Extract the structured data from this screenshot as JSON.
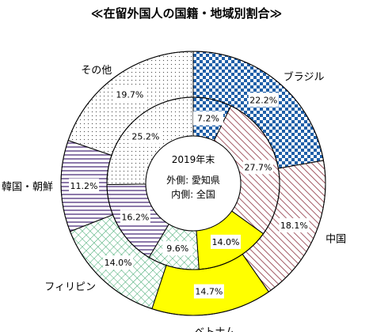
{
  "chart_data": {
    "type": "donut",
    "title": "≪在留外国人の国籍・地域別割合≫",
    "center_text": [
      "2019年末",
      "外側: 愛知県",
      "内側: 全国"
    ],
    "categories": [
      "ブラジル",
      "中国",
      "ベトナム",
      "フィリピン",
      "韓国・朝鮮",
      "その他"
    ],
    "series": [
      {
        "name": "外側: 愛知県",
        "values": [
          22.2,
          18.1,
          14.7,
          14.0,
          11.2,
          19.7
        ]
      },
      {
        "name": "内側: 全国",
        "values": [
          7.2,
          27.7,
          14.0,
          9.6,
          16.2,
          25.2
        ]
      }
    ],
    "value_labels": {
      "outer": [
        "22.2%",
        "18.1%",
        "14.7%",
        "14.0%",
        "11.2%",
        "19.7%"
      ],
      "inner": [
        "7.2%",
        "27.7%",
        "14.0%",
        "9.6%",
        "16.2%",
        "25.2%"
      ]
    },
    "category_styles": [
      {
        "pattern": "checker",
        "color": "#1f5fa8"
      },
      {
        "pattern": "diagonal",
        "color": "#8b2f3c"
      },
      {
        "pattern": "solid",
        "color": "#ffff00"
      },
      {
        "pattern": "crosshatch",
        "color": "#3aa56a"
      },
      {
        "pattern": "horizontal",
        "color": "#5b3f85"
      },
      {
        "pattern": "dots",
        "color": "#555555"
      }
    ]
  }
}
